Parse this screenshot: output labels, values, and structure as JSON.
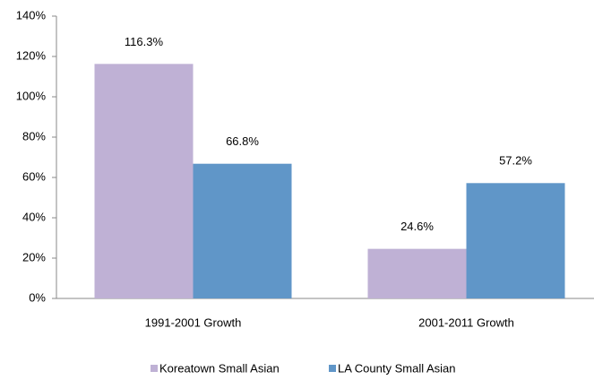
{
  "chart_data": {
    "type": "bar",
    "categories": [
      "1991-2001 Growth",
      "2001-2011 Growth"
    ],
    "series": [
      {
        "name": "Koreatown Small Asian",
        "color": "#bfb1d5",
        "values": [
          116.3,
          24.6
        ],
        "value_labels": [
          "116.3%",
          "24.6%"
        ]
      },
      {
        "name": "LA County Small Asian",
        "color": "#6096c8",
        "values": [
          66.8,
          57.2
        ],
        "value_labels": [
          "66.8%",
          "57.2%"
        ]
      }
    ],
    "ylim": [
      0,
      140
    ],
    "yticks": [
      {
        "value": 0,
        "label": "0%"
      },
      {
        "value": 20,
        "label": "20%"
      },
      {
        "value": 40,
        "label": "40%"
      },
      {
        "value": 60,
        "label": "60%"
      },
      {
        "value": 80,
        "label": "80%"
      },
      {
        "value": 100,
        "label": "100%"
      },
      {
        "value": 120,
        "label": "120%"
      },
      {
        "value": 140,
        "label": "140%"
      }
    ],
    "legend": "bottom"
  }
}
